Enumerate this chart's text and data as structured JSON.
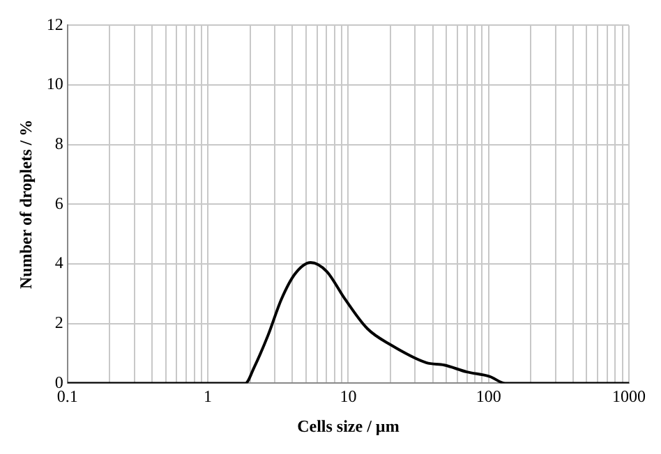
{
  "chart_data": {
    "type": "line",
    "xlabel": "Cells size / µm",
    "ylabel": "Number of droplets / %",
    "log": "x",
    "grid": true,
    "marker": "none",
    "line_style": "solid",
    "x": [
      0.1,
      1.85,
      2.14,
      2.68,
      3.35,
      4.18,
      5.4,
      7.03,
      9.46,
      13.7,
      19.9,
      36,
      48.3,
      70,
      101.6,
      131.5,
      1000
    ],
    "series": [
      {
        "color": "#000000",
        "values": [
          0,
          0,
          0.54,
          1.6,
          2.83,
          3.67,
          4.05,
          3.75,
          2.83,
          1.83,
          1.3,
          0.69,
          0.61,
          0.38,
          0.23,
          0,
          0
        ]
      }
    ],
    "xlim": [
      0.1,
      1000
    ],
    "xticks": [
      0.1,
      {
        "value": 0.2,
        "label": null
      },
      {
        "value": 0.3,
        "label": null
      },
      {
        "value": 0.4,
        "label": null
      },
      {
        "value": 0.5,
        "label": null
      },
      {
        "value": 0.6,
        "label": null
      },
      {
        "value": 0.7,
        "label": null
      },
      {
        "value": 0.8,
        "label": null
      },
      {
        "value": 0.9,
        "label": null
      },
      1,
      {
        "value": 2,
        "label": null
      },
      {
        "value": 3,
        "label": null
      },
      {
        "value": 4,
        "label": null
      },
      {
        "value": 5,
        "label": null
      },
      {
        "value": 6,
        "label": null
      },
      {
        "value": 7,
        "label": null
      },
      {
        "value": 8,
        "label": null
      },
      {
        "value": 9,
        "label": null
      },
      10,
      {
        "value": 20,
        "label": null
      },
      {
        "value": 30,
        "label": null
      },
      {
        "value": 40,
        "label": null
      },
      {
        "value": 50,
        "label": null
      },
      {
        "value": 60,
        "label": null
      },
      {
        "value": 70,
        "label": null
      },
      {
        "value": 80,
        "label": null
      },
      {
        "value": 90,
        "label": null
      },
      100,
      {
        "value": 200,
        "label": null
      },
      {
        "value": 300,
        "label": null
      },
      {
        "value": 400,
        "label": null
      },
      {
        "value": 500,
        "label": null
      },
      {
        "value": 600,
        "label": null
      },
      {
        "value": 700,
        "label": null
      },
      {
        "value": 800,
        "label": null
      },
      {
        "value": 900,
        "label": null
      },
      1000
    ],
    "ylim": [
      0,
      12
    ],
    "yticks": [
      0,
      2,
      4,
      6,
      8,
      10,
      12
    ]
  }
}
